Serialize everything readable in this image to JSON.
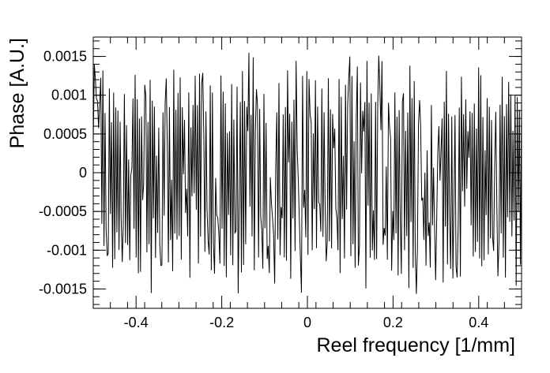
{
  "chart_data": {
    "type": "line",
    "title": "",
    "xlabel": "Reel frequency [1/mm]",
    "ylabel": "Phase [A.U.]",
    "xlim": [
      -0.5,
      0.5
    ],
    "ylim": [
      -0.00175,
      0.00175
    ],
    "x_ticks": [
      -0.4,
      -0.2,
      0,
      0.2,
      0.4
    ],
    "x_tick_labels": [
      "-0.4",
      "-0.2",
      "0",
      "0.2",
      "0.4"
    ],
    "y_ticks": [
      -0.0015,
      -0.001,
      -0.0005,
      0,
      0.0005,
      0.001,
      0.0015
    ],
    "y_tick_labels": [
      "-0.0015",
      "-0.001",
      "-0.0005",
      "0",
      "0.0005",
      "0.001",
      "0.0015"
    ],
    "grid": false,
    "line_color": "#000000",
    "series": [
      {
        "x_start": -0.5,
        "x_end": 0.5,
        "point_count": 400,
        "value_range": [
          -0.00157,
          0.00157
        ],
        "description_values": [
          -0.0012,
          0.0014,
          -0.0013,
          0.0011,
          -0.0015,
          0.0009,
          -0.0006,
          0.0013,
          -0.0011,
          0.0015,
          -0.0014,
          0.0008,
          -0.001,
          0.0012,
          -0.0015,
          0.0014,
          -0.0007,
          0.001,
          -0.0013,
          0.0015
        ]
      }
    ]
  }
}
